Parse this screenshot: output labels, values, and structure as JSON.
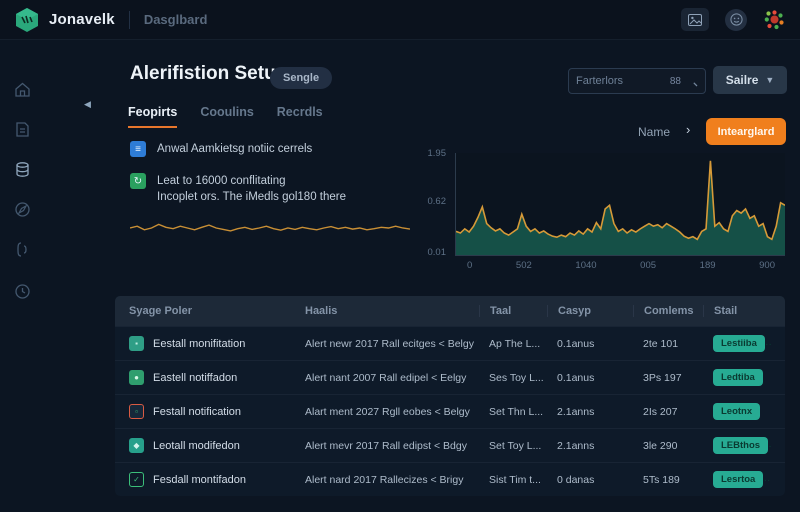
{
  "topbar": {
    "brand": "Jonavelk",
    "nav_item": "Dasglbard"
  },
  "sidebar": {
    "icons": [
      "home-icon",
      "document-icon",
      "database-icon",
      "compass-icon",
      "brackets-icon",
      "clock-icon"
    ]
  },
  "header": {
    "title": "Alerifistion Setuy",
    "badge": "Sengle",
    "search": {
      "placeholder": "Farterlors",
      "shortcut": "88"
    },
    "dropdown_label": "Sailre"
  },
  "tabs": [
    {
      "label": "Feopirts",
      "active": true
    },
    {
      "label": "Cooulins",
      "active": false
    },
    {
      "label": "Recrdls",
      "active": false
    }
  ],
  "info_items": [
    {
      "icon": "bell-icon",
      "icon_color": "#2e7cd6",
      "glyph": "≡",
      "line1": "Anwal Aamkietsg notiic cerrels",
      "line2": ""
    },
    {
      "icon": "refresh-icon",
      "icon_color": "#2aa05f",
      "glyph": "↻",
      "line1": "Leat to 16000 conflitating",
      "line2": "Incoplet ors. The iMedls gol180 there"
    }
  ],
  "chart_section": {
    "name_label": "Name",
    "chevron": "›",
    "button_label": "Intearglard"
  },
  "chart_data": [
    {
      "type": "area",
      "title": "",
      "xlabel": "",
      "ylabel": "",
      "ylim": [
        0,
        1.95
      ],
      "y_ticks": [
        "1.95",
        "0.62",
        "0.01"
      ],
      "x_ticks": [
        "0",
        "502",
        "1040",
        "005",
        "189",
        "900"
      ],
      "line_color": "#d69a38",
      "fill_color": "#16574b",
      "values": [
        0.45,
        0.42,
        0.5,
        0.44,
        0.55,
        0.72,
        0.92,
        0.6,
        0.52,
        0.46,
        0.5,
        0.42,
        0.38,
        0.44,
        0.5,
        0.78,
        0.55,
        0.45,
        0.5,
        0.42,
        0.46,
        0.4,
        0.36,
        0.34,
        0.38,
        0.35,
        0.42,
        0.38,
        0.46,
        0.4,
        0.5,
        0.44,
        0.62,
        0.5,
        0.88,
        0.95,
        0.6,
        0.45,
        0.5,
        0.42,
        0.48,
        0.44,
        0.5,
        0.55,
        0.6,
        0.55,
        0.58,
        0.52,
        0.6,
        0.55,
        0.5,
        0.44,
        0.36,
        0.32,
        0.35,
        0.3,
        0.45,
        0.5,
        1.8,
        0.55,
        0.62,
        0.5,
        0.45,
        0.75,
        0.85,
        0.8,
        0.88,
        0.7,
        0.75,
        0.55,
        0.6,
        0.35,
        0.3,
        0.55,
        1.0,
        0.95
      ]
    },
    {
      "type": "line",
      "title": "",
      "ylim": [
        0,
        1
      ],
      "line_color": "#c98f35",
      "values": [
        0.5,
        0.55,
        0.45,
        0.5,
        0.6,
        0.52,
        0.48,
        0.55,
        0.5,
        0.45,
        0.52,
        0.58,
        0.5,
        0.46,
        0.42,
        0.48,
        0.52,
        0.46,
        0.5,
        0.55,
        0.48,
        0.44,
        0.5,
        0.46,
        0.52,
        0.48,
        0.45,
        0.5,
        0.54,
        0.48,
        0.52,
        0.47,
        0.5,
        0.45,
        0.48,
        0.52,
        0.5,
        0.55,
        0.5,
        0.47
      ]
    }
  ],
  "table": {
    "columns": [
      "Syage Poler",
      "Haalis",
      "Taal",
      "Casyp",
      "Comlems",
      "Stail"
    ],
    "rows": [
      {
        "name": "Eestall monifitation",
        "desc": "Alert newr 2017 Rall ecitges < Belgy",
        "taal": "Ap The L...",
        "casyp": "0.1anus",
        "comlems": "2te 101",
        "status": "Lestiiba",
        "icon": {
          "bg": "#2f9e86",
          "border": "#2f9e86",
          "glyph": "▪",
          "color": "#bfeee2"
        }
      },
      {
        "name": "Eastell notiffadon",
        "desc": "Alert nant 2007 Rall edipel < Eelgy",
        "taal": "Ses Toy L...",
        "casyp": "0.1anus",
        "comlems": "3Ps 197",
        "status": "Ledtiba",
        "icon": {
          "bg": "#2f9e6e",
          "border": "#2f9e6e",
          "glyph": "●",
          "color": "#d7f6e6"
        }
      },
      {
        "name": "Festall notification",
        "desc": "Alart ment 2027 Rgll eobes < Belgy",
        "taal": "Set Thn L...",
        "casyp": "2.1anns",
        "comlems": "2Is 207",
        "status": "Leotnx",
        "icon": {
          "bg": "#16283a",
          "border": "#d95b43",
          "glyph": "▫",
          "color": "#3bbf7a"
        }
      },
      {
        "name": "Leotall modifedon",
        "desc": "Alert mevr 2017 Rall edipst < Bdgy",
        "taal": "Set Toy L...",
        "casyp": "2.1anns",
        "comlems": "3le 290",
        "status": "LEBthos",
        "icon": {
          "bg": "#27a08b",
          "border": "#27a08b",
          "glyph": "◆",
          "color": "#d3f3ec"
        }
      },
      {
        "name": "Fesdall montifadon",
        "desc": "Alert nard 2017 Rallecizes < Brigy",
        "taal": "Sist Tim t...",
        "casyp": "0 danas",
        "comlems": "5Ts 189",
        "status": "Lesrtoa",
        "icon": {
          "bg": "transparent",
          "border": "#3bbf7a",
          "glyph": "✓",
          "color": "#3bbf7a"
        }
      }
    ]
  },
  "colors": {
    "accent_orange": "#e8762c",
    "button_orange": "#f07f1d",
    "badge_teal": "#27ab93",
    "chart_line": "#d69a38",
    "chart_fill": "#16574b",
    "background": "#0c1522"
  }
}
